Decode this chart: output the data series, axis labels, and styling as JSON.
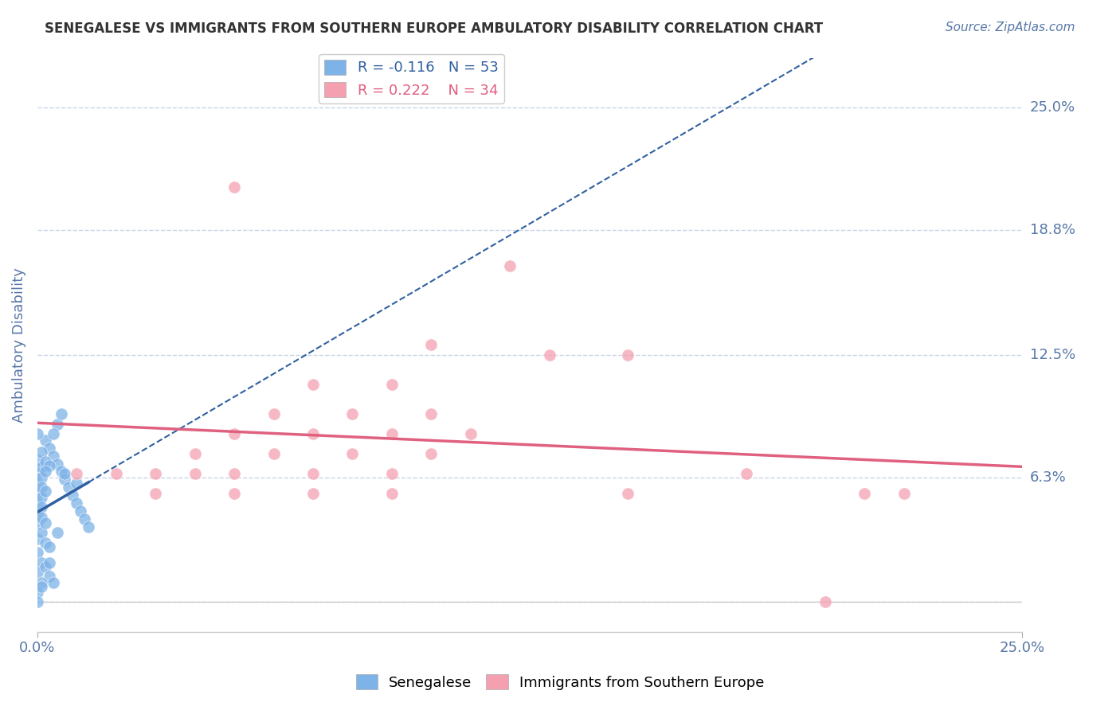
{
  "title": "SENEGALESE VS IMMIGRANTS FROM SOUTHERN EUROPE AMBULATORY DISABILITY CORRELATION CHART",
  "source": "Source: ZipAtlas.com",
  "ylabel": "Ambulatory Disability",
  "xlim": [
    0.0,
    0.25
  ],
  "ylim": [
    -0.015,
    0.275
  ],
  "yticks": [
    0.0,
    0.063,
    0.125,
    0.188,
    0.25
  ],
  "ytick_labels": [
    "",
    "6.3%",
    "12.5%",
    "18.8%",
    "25.0%"
  ],
  "blue_R": -0.116,
  "blue_N": 53,
  "pink_R": 0.222,
  "pink_N": 34,
  "blue_color": "#7EB3E8",
  "pink_color": "#F4A0B0",
  "blue_line_color": "#3060A0",
  "pink_line_color": "#E06080",
  "blue_scatter": [
    [
      0.002,
      0.082
    ],
    [
      0.003,
      0.078
    ],
    [
      0.004,
      0.074
    ],
    [
      0.005,
      0.07
    ],
    [
      0.006,
      0.066
    ],
    [
      0.007,
      0.062
    ],
    [
      0.008,
      0.058
    ],
    [
      0.009,
      0.054
    ],
    [
      0.01,
      0.05
    ],
    [
      0.011,
      0.046
    ],
    [
      0.012,
      0.042
    ],
    [
      0.013,
      0.038
    ],
    [
      0.0,
      0.072
    ],
    [
      0.001,
      0.076
    ],
    [
      0.0,
      0.065
    ],
    [
      0.001,
      0.068
    ],
    [
      0.002,
      0.071
    ],
    [
      0.003,
      0.069
    ],
    [
      0.0,
      0.06
    ],
    [
      0.001,
      0.063
    ],
    [
      0.002,
      0.066
    ],
    [
      0.0,
      0.055
    ],
    [
      0.001,
      0.058
    ],
    [
      0.0,
      0.05
    ],
    [
      0.001,
      0.053
    ],
    [
      0.002,
      0.056
    ],
    [
      0.0,
      0.045
    ],
    [
      0.001,
      0.048
    ],
    [
      0.0,
      0.04
    ],
    [
      0.001,
      0.043
    ],
    [
      0.005,
      0.09
    ],
    [
      0.004,
      0.085
    ],
    [
      0.006,
      0.095
    ],
    [
      0.0,
      0.032
    ],
    [
      0.001,
      0.035
    ],
    [
      0.0,
      0.025
    ],
    [
      0.002,
      0.03
    ],
    [
      0.003,
      0.028
    ],
    [
      0.001,
      0.02
    ],
    [
      0.0,
      0.015
    ],
    [
      0.002,
      0.018
    ],
    [
      0.003,
      0.013
    ],
    [
      0.004,
      0.01
    ],
    [
      0.001,
      0.01
    ],
    [
      0.0,
      0.005
    ],
    [
      0.001,
      0.008
    ],
    [
      0.0,
      0.0
    ],
    [
      0.01,
      0.06
    ],
    [
      0.0,
      0.085
    ],
    [
      0.002,
      0.04
    ],
    [
      0.003,
      0.02
    ],
    [
      0.005,
      0.035
    ],
    [
      0.007,
      0.065
    ]
  ],
  "pink_scatter": [
    [
      0.05,
      0.21
    ],
    [
      0.12,
      0.17
    ],
    [
      0.07,
      0.11
    ],
    [
      0.09,
      0.11
    ],
    [
      0.06,
      0.095
    ],
    [
      0.08,
      0.095
    ],
    [
      0.1,
      0.095
    ],
    [
      0.05,
      0.085
    ],
    [
      0.07,
      0.085
    ],
    [
      0.09,
      0.085
    ],
    [
      0.11,
      0.085
    ],
    [
      0.04,
      0.075
    ],
    [
      0.06,
      0.075
    ],
    [
      0.08,
      0.075
    ],
    [
      0.1,
      0.075
    ],
    [
      0.03,
      0.065
    ],
    [
      0.05,
      0.065
    ],
    [
      0.07,
      0.065
    ],
    [
      0.09,
      0.065
    ],
    [
      0.02,
      0.065
    ],
    [
      0.04,
      0.065
    ],
    [
      0.01,
      0.065
    ],
    [
      0.03,
      0.055
    ],
    [
      0.05,
      0.055
    ],
    [
      0.07,
      0.055
    ],
    [
      0.09,
      0.055
    ],
    [
      0.13,
      0.125
    ],
    [
      0.15,
      0.125
    ],
    [
      0.18,
      0.065
    ],
    [
      0.21,
      0.055
    ],
    [
      0.2,
      0.0
    ],
    [
      0.22,
      0.055
    ],
    [
      0.15,
      0.055
    ],
    [
      0.1,
      0.13
    ]
  ],
  "background_color": "#FFFFFF",
  "grid_color": "#C8D4E8",
  "title_color": "#333333",
  "axis_label_color": "#5878A8",
  "tick_label_color": "#5878A8"
}
